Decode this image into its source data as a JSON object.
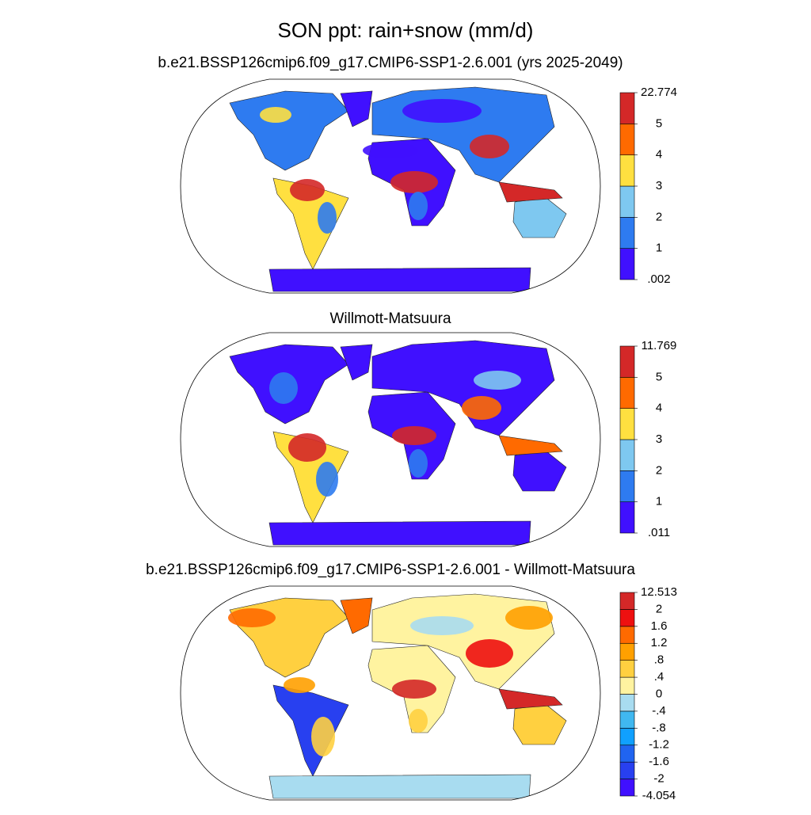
{
  "title": "SON ppt: rain+snow (mm/d)",
  "panels": [
    {
      "title": "b.e21.BSSP126cmip6.f09_g17.CMIP6-SSP1-2.6.001 (yrs 2025-2049)",
      "colorbar": {
        "ticks": [
          {
            "value": 0.002,
            "label": ".002"
          },
          1,
          2,
          3,
          4,
          5,
          22.774
        ],
        "colors": [
          "#4010ff",
          "#2e7bf0",
          "#7ec8f0",
          "#ffe040",
          "#ff6a00",
          "#d42828"
        ]
      }
    },
    {
      "title": "Willmott-Matsuura",
      "colorbar": {
        "ticks": [
          {
            "value": 0.011,
            "label": ".011"
          },
          1,
          2,
          3,
          4,
          5,
          11.769
        ],
        "colors": [
          "#4010ff",
          "#2e7bf0",
          "#7ec8f0",
          "#ffe040",
          "#ff6a00",
          "#d42828"
        ]
      }
    },
    {
      "title": "b.e21.BSSP126cmip6.f09_g17.CMIP6-SSP1-2.6.001 - Willmott-Matsuura",
      "colorbar": {
        "ticks": [
          -4.054,
          -2,
          -1.6,
          -1.2,
          {
            "value": -0.8,
            "label": "-.8"
          },
          {
            "value": -0.4,
            "label": "-.4"
          },
          0,
          {
            "value": 0.4,
            "label": ".4"
          },
          {
            "value": 0.8,
            "label": ".8"
          },
          1.2,
          1.6,
          2,
          12.513
        ],
        "colors": [
          "#4010ff",
          "#2840f0",
          "#2064f0",
          "#10a0ff",
          "#40b8f0",
          "#a8dcf0",
          "#fff3a0",
          "#ffd040",
          "#ffa000",
          "#ff6a00",
          "#ee1010",
          "#d42828"
        ]
      }
    }
  ]
}
